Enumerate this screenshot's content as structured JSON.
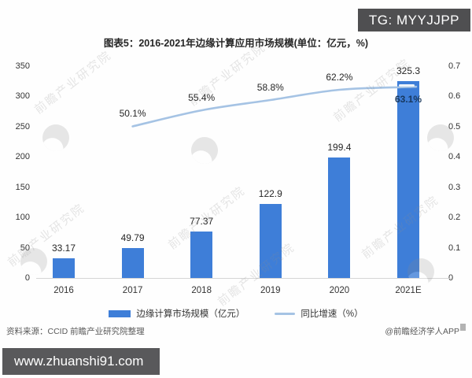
{
  "badge": {
    "text": "TG: MYYJJPP"
  },
  "chart_data": {
    "type": "combo",
    "title": "图表5：2016-2021年边缘计算应用市场规模(单位：亿元，%)",
    "categories": [
      "2016",
      "2017",
      "2018",
      "2019",
      "2020",
      "2021E"
    ],
    "series": [
      {
        "name": "边缘计算市场规模（亿元）",
        "type": "bar",
        "axis": "left",
        "values": [
          33.17,
          49.79,
          77.37,
          122.9,
          199.4,
          325.3
        ],
        "labels": [
          "33.17",
          "49.79",
          "77.37",
          "122.9",
          "199.4",
          "325.3"
        ]
      },
      {
        "name": "同比增速（%）",
        "type": "line",
        "axis": "right",
        "values": [
          null,
          0.501,
          0.554,
          0.588,
          0.622,
          0.631
        ],
        "labels": [
          null,
          "50.1%",
          "55.4%",
          "58.8%",
          "62.2%",
          "63.1%"
        ]
      }
    ],
    "left_axis": {
      "min": 0,
      "max": 350,
      "step": 50,
      "ticks": [
        "0",
        "50",
        "100",
        "150",
        "200",
        "250",
        "300",
        "350"
      ]
    },
    "right_axis": {
      "min": 0,
      "max": 0.7,
      "step": 0.1,
      "ticks": [
        "0",
        "0.1",
        "0.2",
        "0.3",
        "0.4",
        "0.5",
        "0.6",
        "0.7"
      ]
    },
    "grid": false,
    "legend_position": "bottom"
  },
  "legend": {
    "bar_label": "边缘计算市场规模（亿元）",
    "line_label": "同比增速（%）"
  },
  "footer": {
    "source": "资料来源：CCID 前瞻产业研究院整理",
    "credit": "@前瞻经济学人APP",
    "website": "www.zhuanshi91.com"
  },
  "watermark": {
    "text": "前瞻产业研究院"
  },
  "colors": {
    "bar": "#3e7ed8",
    "line": "#a5c3e4",
    "last_rate_label": "#17375d",
    "badge_bg": "#4f4f51",
    "site_bar_bg": "#59595b"
  }
}
